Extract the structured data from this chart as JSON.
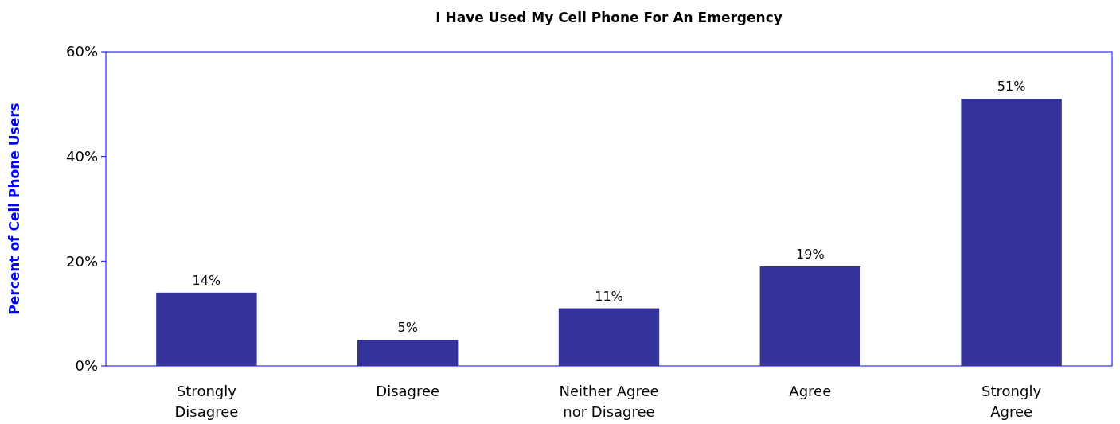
{
  "chart_data": {
    "type": "bar",
    "title": "I Have Used My Cell Phone For An Emergency",
    "ylabel": "Percent of Cell Phone Users",
    "categories": [
      "Strongly Disagree",
      "Disagree",
      "Neither Agree nor Disagree",
      "Agree",
      "Strongly Agree"
    ],
    "values": [
      14,
      5,
      11,
      19,
      51
    ],
    "value_labels": [
      "14%",
      "5%",
      "11%",
      "19%",
      "51%"
    ],
    "color": "#333399",
    "ylim": [
      0,
      60
    ],
    "yticks": [
      {
        "value": 0,
        "label": "0%"
      },
      {
        "value": 20,
        "label": "20%"
      },
      {
        "value": 40,
        "label": "40%"
      },
      {
        "value": 60,
        "label": "60%"
      }
    ],
    "grid": false
  }
}
